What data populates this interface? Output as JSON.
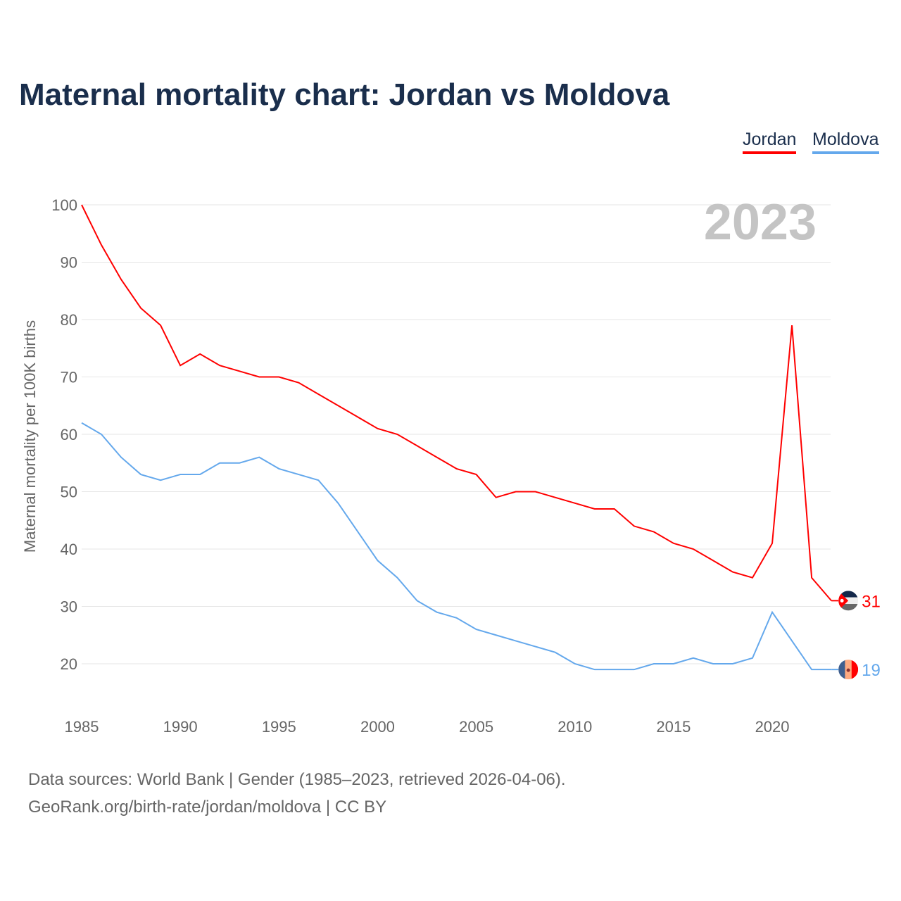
{
  "title": "Maternal mortality chart: Jordan vs Moldova",
  "footer": {
    "line1": "Data sources: World Bank | Gender (1985–2023, retrieved 2026-04-06).",
    "line2": "GeoRank.org/birth-rate/jordan/moldova | CC BY"
  },
  "chart_data": {
    "type": "line",
    "title": "Maternal mortality chart: Jordan vs Moldova",
    "year_label": "2023",
    "xlabel": "",
    "ylabel": "Maternal mortality per 100K births",
    "xlim": [
      1985,
      2023
    ],
    "ylim": [
      20,
      100
    ],
    "xticks": [
      1985,
      1990,
      1995,
      2000,
      2005,
      2010,
      2015,
      2020
    ],
    "yticks": [
      20,
      30,
      40,
      50,
      60,
      70,
      80,
      90,
      100
    ],
    "grid": true,
    "legend_position": "top-right",
    "x": [
      1985,
      1986,
      1987,
      1988,
      1989,
      1990,
      1991,
      1992,
      1993,
      1994,
      1995,
      1996,
      1997,
      1998,
      1999,
      2000,
      2001,
      2002,
      2003,
      2004,
      2005,
      2006,
      2007,
      2008,
      2009,
      2010,
      2011,
      2012,
      2013,
      2014,
      2015,
      2016,
      2017,
      2018,
      2019,
      2020,
      2021,
      2022,
      2023
    ],
    "series": [
      {
        "name": "Jordan",
        "color": "#ff0000",
        "end_label": "31",
        "values": [
          100,
          93,
          87,
          82,
          79,
          72,
          74,
          72,
          71,
          70,
          70,
          69,
          67,
          65,
          63,
          61,
          60,
          58,
          56,
          54,
          53,
          49,
          50,
          50,
          49,
          48,
          47,
          47,
          44,
          43,
          41,
          40,
          38,
          36,
          35,
          41,
          79,
          35,
          31
        ]
      },
      {
        "name": "Moldova",
        "color": "#64a8ec",
        "end_label": "19",
        "values": [
          62,
          60,
          56,
          53,
          52,
          53,
          53,
          55,
          55,
          56,
          54,
          53,
          52,
          48,
          43,
          38,
          35,
          31,
          29,
          28,
          26,
          25,
          24,
          23,
          22,
          20,
          19,
          19,
          19,
          20,
          20,
          21,
          20,
          20,
          21,
          29,
          24,
          19,
          19
        ]
      }
    ]
  }
}
